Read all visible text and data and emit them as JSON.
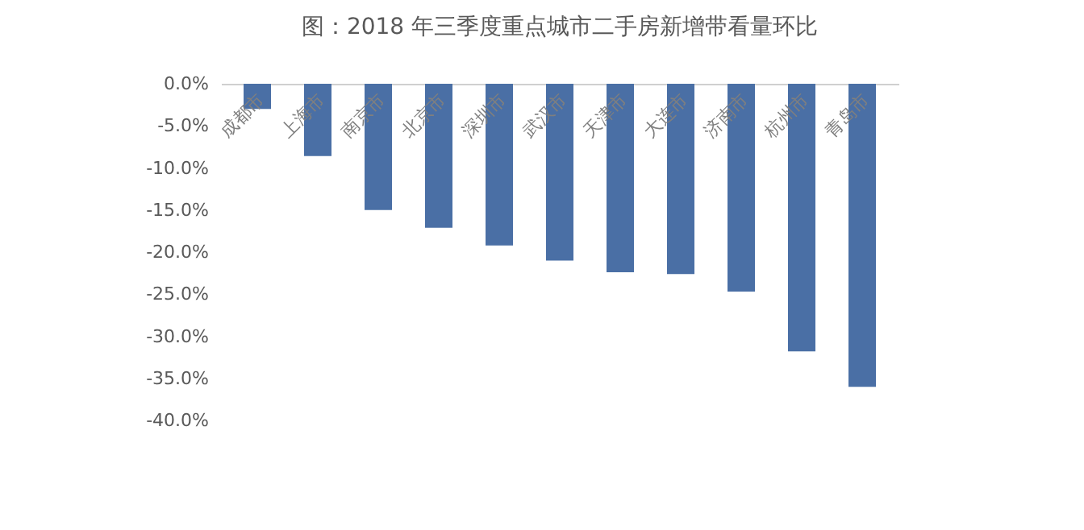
{
  "chart_data": {
    "type": "bar",
    "title": "图：2018 年三季度重点城市二手房新增带看量环比",
    "categories": [
      "成都市",
      "上海市",
      "南京市",
      "北京市",
      "深圳市",
      "武汉市",
      "天津市",
      "大连市",
      "济南市",
      "杭州市",
      "青岛市"
    ],
    "values": [
      -3.0,
      -8.6,
      -15.0,
      -17.1,
      -19.2,
      -21.0,
      -22.4,
      -22.6,
      -24.7,
      -31.8,
      -36.0
    ],
    "color": "#4a6fa5",
    "ylim": [
      -40,
      0
    ],
    "yticks": [
      {
        "value": 0,
        "label": "0.0%"
      },
      {
        "value": -5,
        "label": "-5.0%"
      },
      {
        "value": -10,
        "label": "-10.0%"
      },
      {
        "value": -15,
        "label": "-15.0%"
      },
      {
        "value": -20,
        "label": "-20.0%"
      },
      {
        "value": -25,
        "label": "-25.0%"
      },
      {
        "value": -30,
        "label": "-30.0%"
      },
      {
        "value": -35,
        "label": "-35.0%"
      },
      {
        "value": -40,
        "label": "-40.0%"
      }
    ],
    "grid": false,
    "tick_labels": "y"
  }
}
